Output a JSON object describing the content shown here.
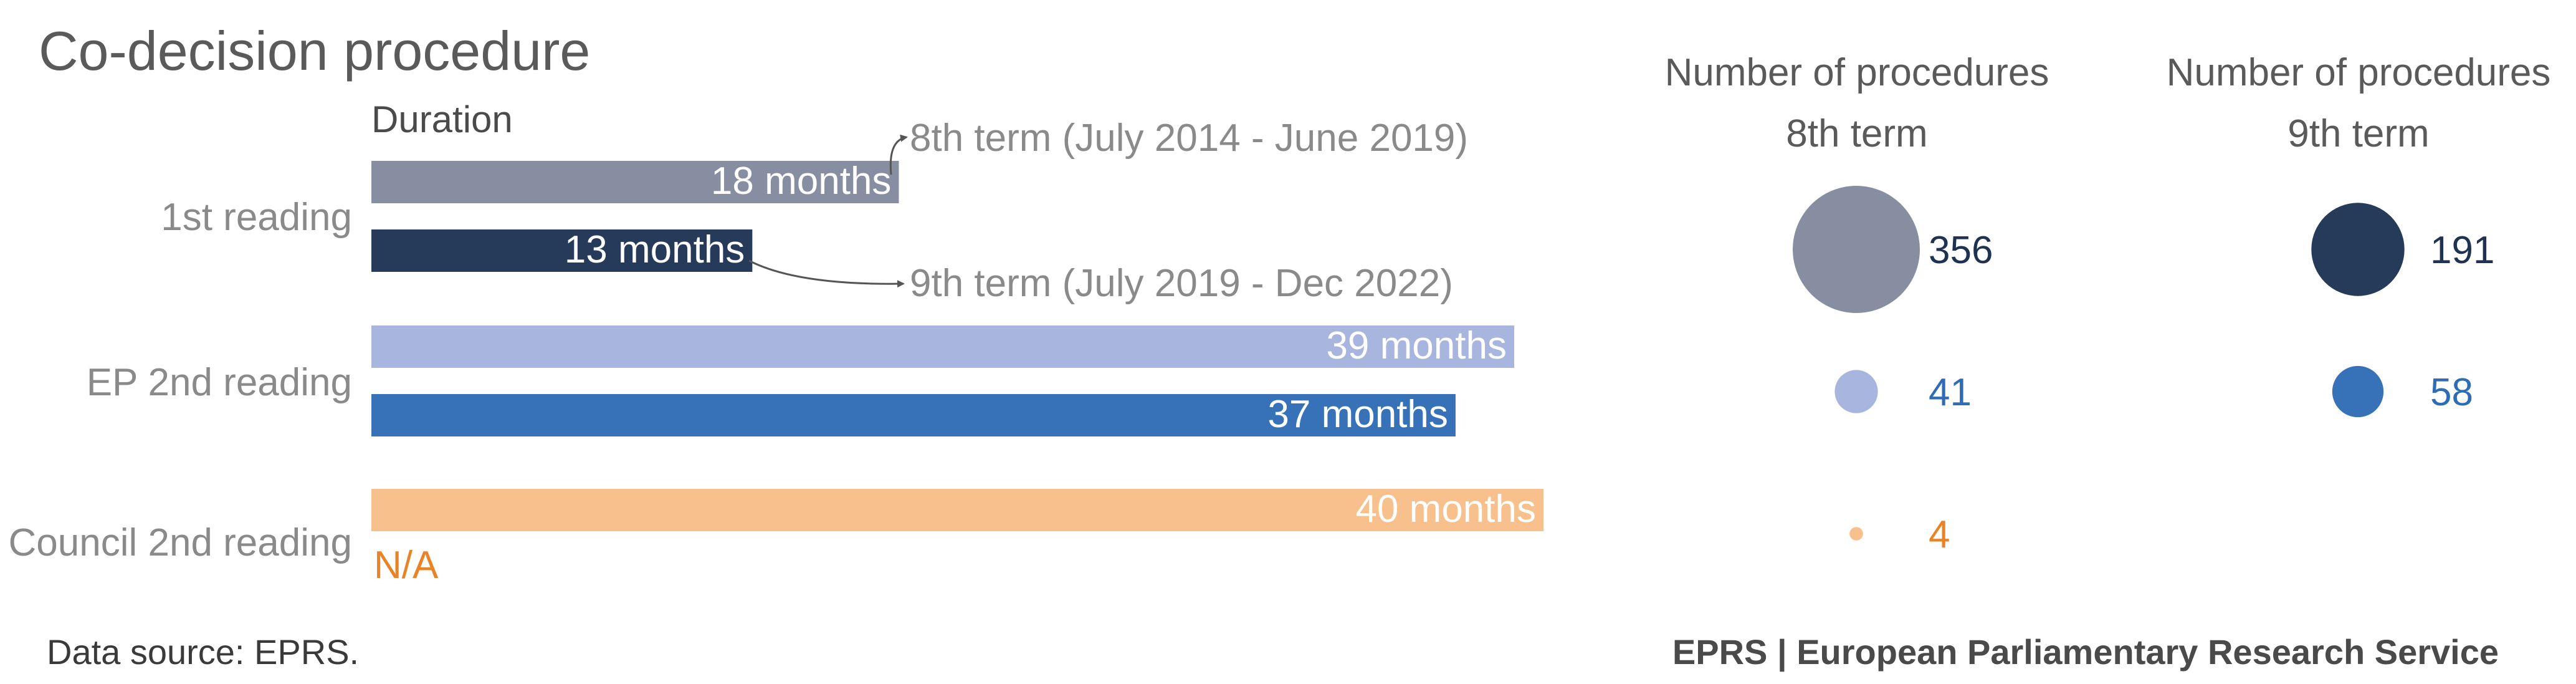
{
  "chart_data": {
    "type": "bar",
    "title": "Co-decision procedure",
    "duration_label": "Duration",
    "categories": [
      "1st reading",
      "EP 2nd reading",
      "Council 2nd reading"
    ],
    "xlim": [
      0,
      40
    ],
    "unit": "months",
    "series": [
      {
        "name": "8th term (July 2014 - June 2019)",
        "values": [
          18,
          39,
          40
        ],
        "labels": [
          "18 months",
          "39 months",
          "40 months"
        ],
        "procedures": [
          356,
          41,
          4
        ],
        "color": "#878ea1",
        "colors": [
          "#878ea1",
          "#a8b5df",
          "#f7c08c"
        ],
        "text_colors": [
          "#1f3350",
          "#2e6db5",
          "#e88425"
        ]
      },
      {
        "name": "9th term (July 2019 - Dec 2022)",
        "values": [
          13,
          37,
          null
        ],
        "labels": [
          "13 months",
          "37 months",
          "N/A"
        ],
        "procedures": [
          191,
          58,
          null
        ],
        "color": "#263a5a",
        "colors": [
          "#263a5a",
          "#3772b9",
          "#e88425"
        ],
        "text_colors": [
          "#1f3350",
          "#2e6db5",
          "#e88425"
        ]
      }
    ],
    "procedure_columns": [
      {
        "line1": "Number of procedures",
        "line2": "8th term"
      },
      {
        "line1": "Number of procedures",
        "line2": "9th term"
      }
    ],
    "legend_placement": "annotations"
  },
  "footer": {
    "source": "Data source: EPRS.",
    "credit": "EPRS | European Parliamentary Research Service"
  }
}
